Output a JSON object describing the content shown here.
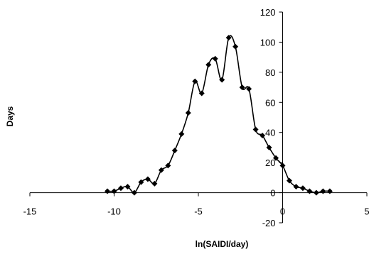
{
  "chart_data": {
    "type": "line",
    "xlabel": "ln(SAIDI/day)",
    "ylabel": "Days",
    "xlim": [
      -15,
      5
    ],
    "ylim": [
      -20,
      120
    ],
    "x_ticks": [
      -15,
      -10,
      -5,
      0,
      5
    ],
    "y_ticks": [
      -20,
      0,
      20,
      40,
      60,
      80,
      100,
      120
    ],
    "x_tick_labels": [
      "-15",
      "-10",
      "-5",
      "0",
      "5"
    ],
    "y_tick_labels": [
      "-20",
      "0",
      "20",
      "40",
      "60",
      "80",
      "100",
      "120"
    ],
    "grid": false,
    "legend": "none",
    "marker": "diamond",
    "series": [
      {
        "color": "#000000",
        "x": [
          -10.4,
          -10.0,
          -9.6,
          -9.2,
          -8.8,
          -8.4,
          -8.0,
          -7.6,
          -7.2,
          -6.8,
          -6.4,
          -6.0,
          -5.6,
          -5.2,
          -4.8,
          -4.4,
          -4.0,
          -3.6,
          -3.2,
          -2.8,
          -2.4,
          -2.0,
          -1.6,
          -1.2,
          -0.8,
          -0.4,
          0.0,
          0.4,
          0.8,
          1.2,
          1.6,
          2.0,
          2.4,
          2.8
        ],
        "y": [
          1,
          1,
          3,
          4,
          0,
          7,
          9,
          6,
          15,
          18,
          28,
          39,
          53,
          74,
          66,
          85,
          89,
          75,
          103,
          97,
          70,
          69,
          42,
          38,
          30,
          23,
          18,
          8,
          4,
          3,
          1,
          0,
          1,
          1
        ]
      }
    ]
  }
}
